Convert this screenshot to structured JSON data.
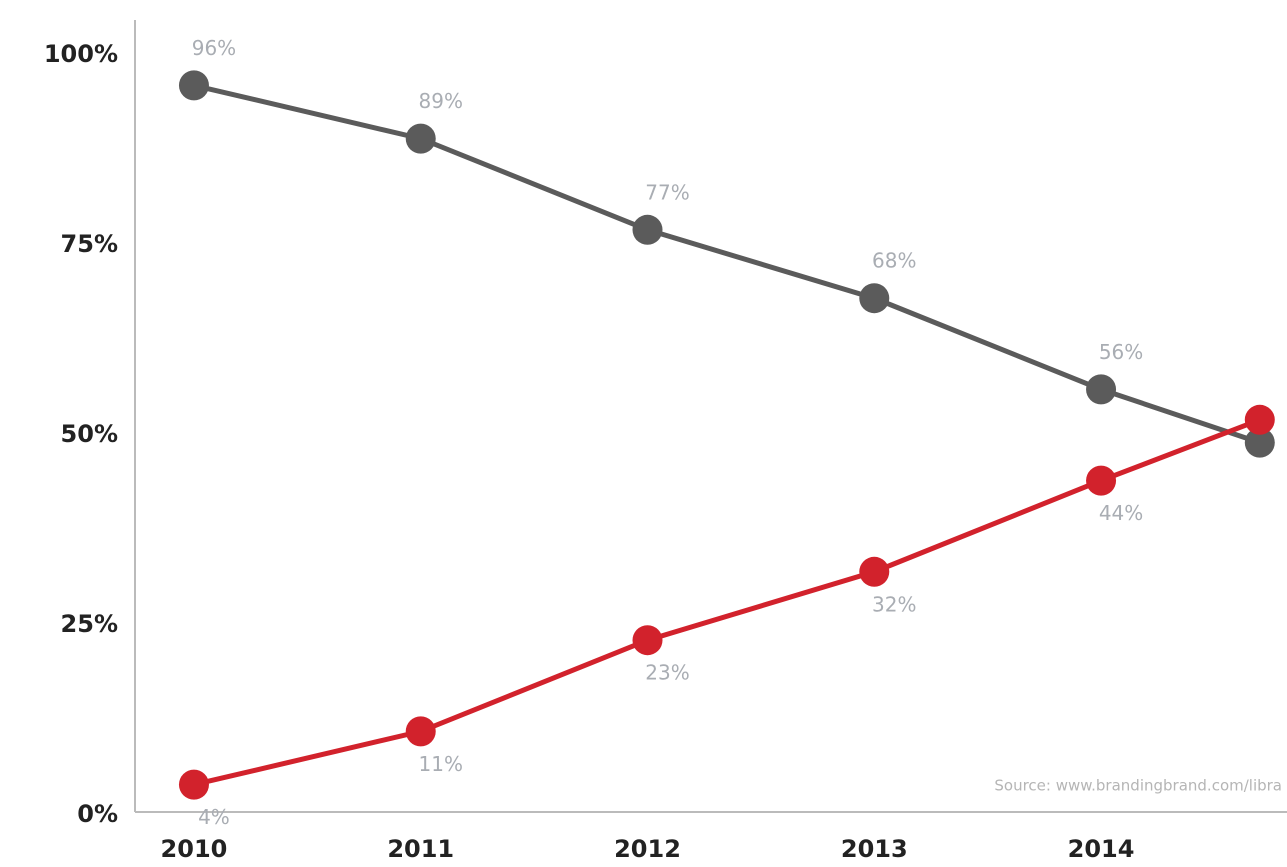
{
  "chart_data": {
    "type": "line",
    "x": [
      2010,
      2011,
      2012,
      2013,
      2014,
      2014.7
    ],
    "xlim": [
      2009.74,
      2014.82
    ],
    "xticks": [
      2010,
      2011,
      2012,
      2013,
      2014
    ],
    "ylim": [
      0,
      100
    ],
    "yticks": [
      {
        "value": 0,
        "label": "0%"
      },
      {
        "value": 25,
        "label": "25%"
      },
      {
        "value": 50,
        "label": "50%"
      },
      {
        "value": 75,
        "label": "75%"
      },
      {
        "value": 100,
        "label": "100%"
      }
    ],
    "grid": false,
    "series": [
      {
        "color": "#5b5b5b",
        "label_position": "above",
        "values": [
          96,
          89,
          77,
          68,
          56,
          49
        ],
        "value_labels": [
          "96%",
          "89%",
          "77%",
          "68%",
          "56%",
          null
        ]
      },
      {
        "color": "#d2222c",
        "label_position": "below",
        "values": [
          4,
          11,
          23,
          32,
          44,
          52
        ],
        "value_labels": [
          "4%",
          "11%",
          "23%",
          "32%",
          "44%",
          null
        ]
      }
    ],
    "source": "Source: www.brandingbrand.com/libra"
  }
}
